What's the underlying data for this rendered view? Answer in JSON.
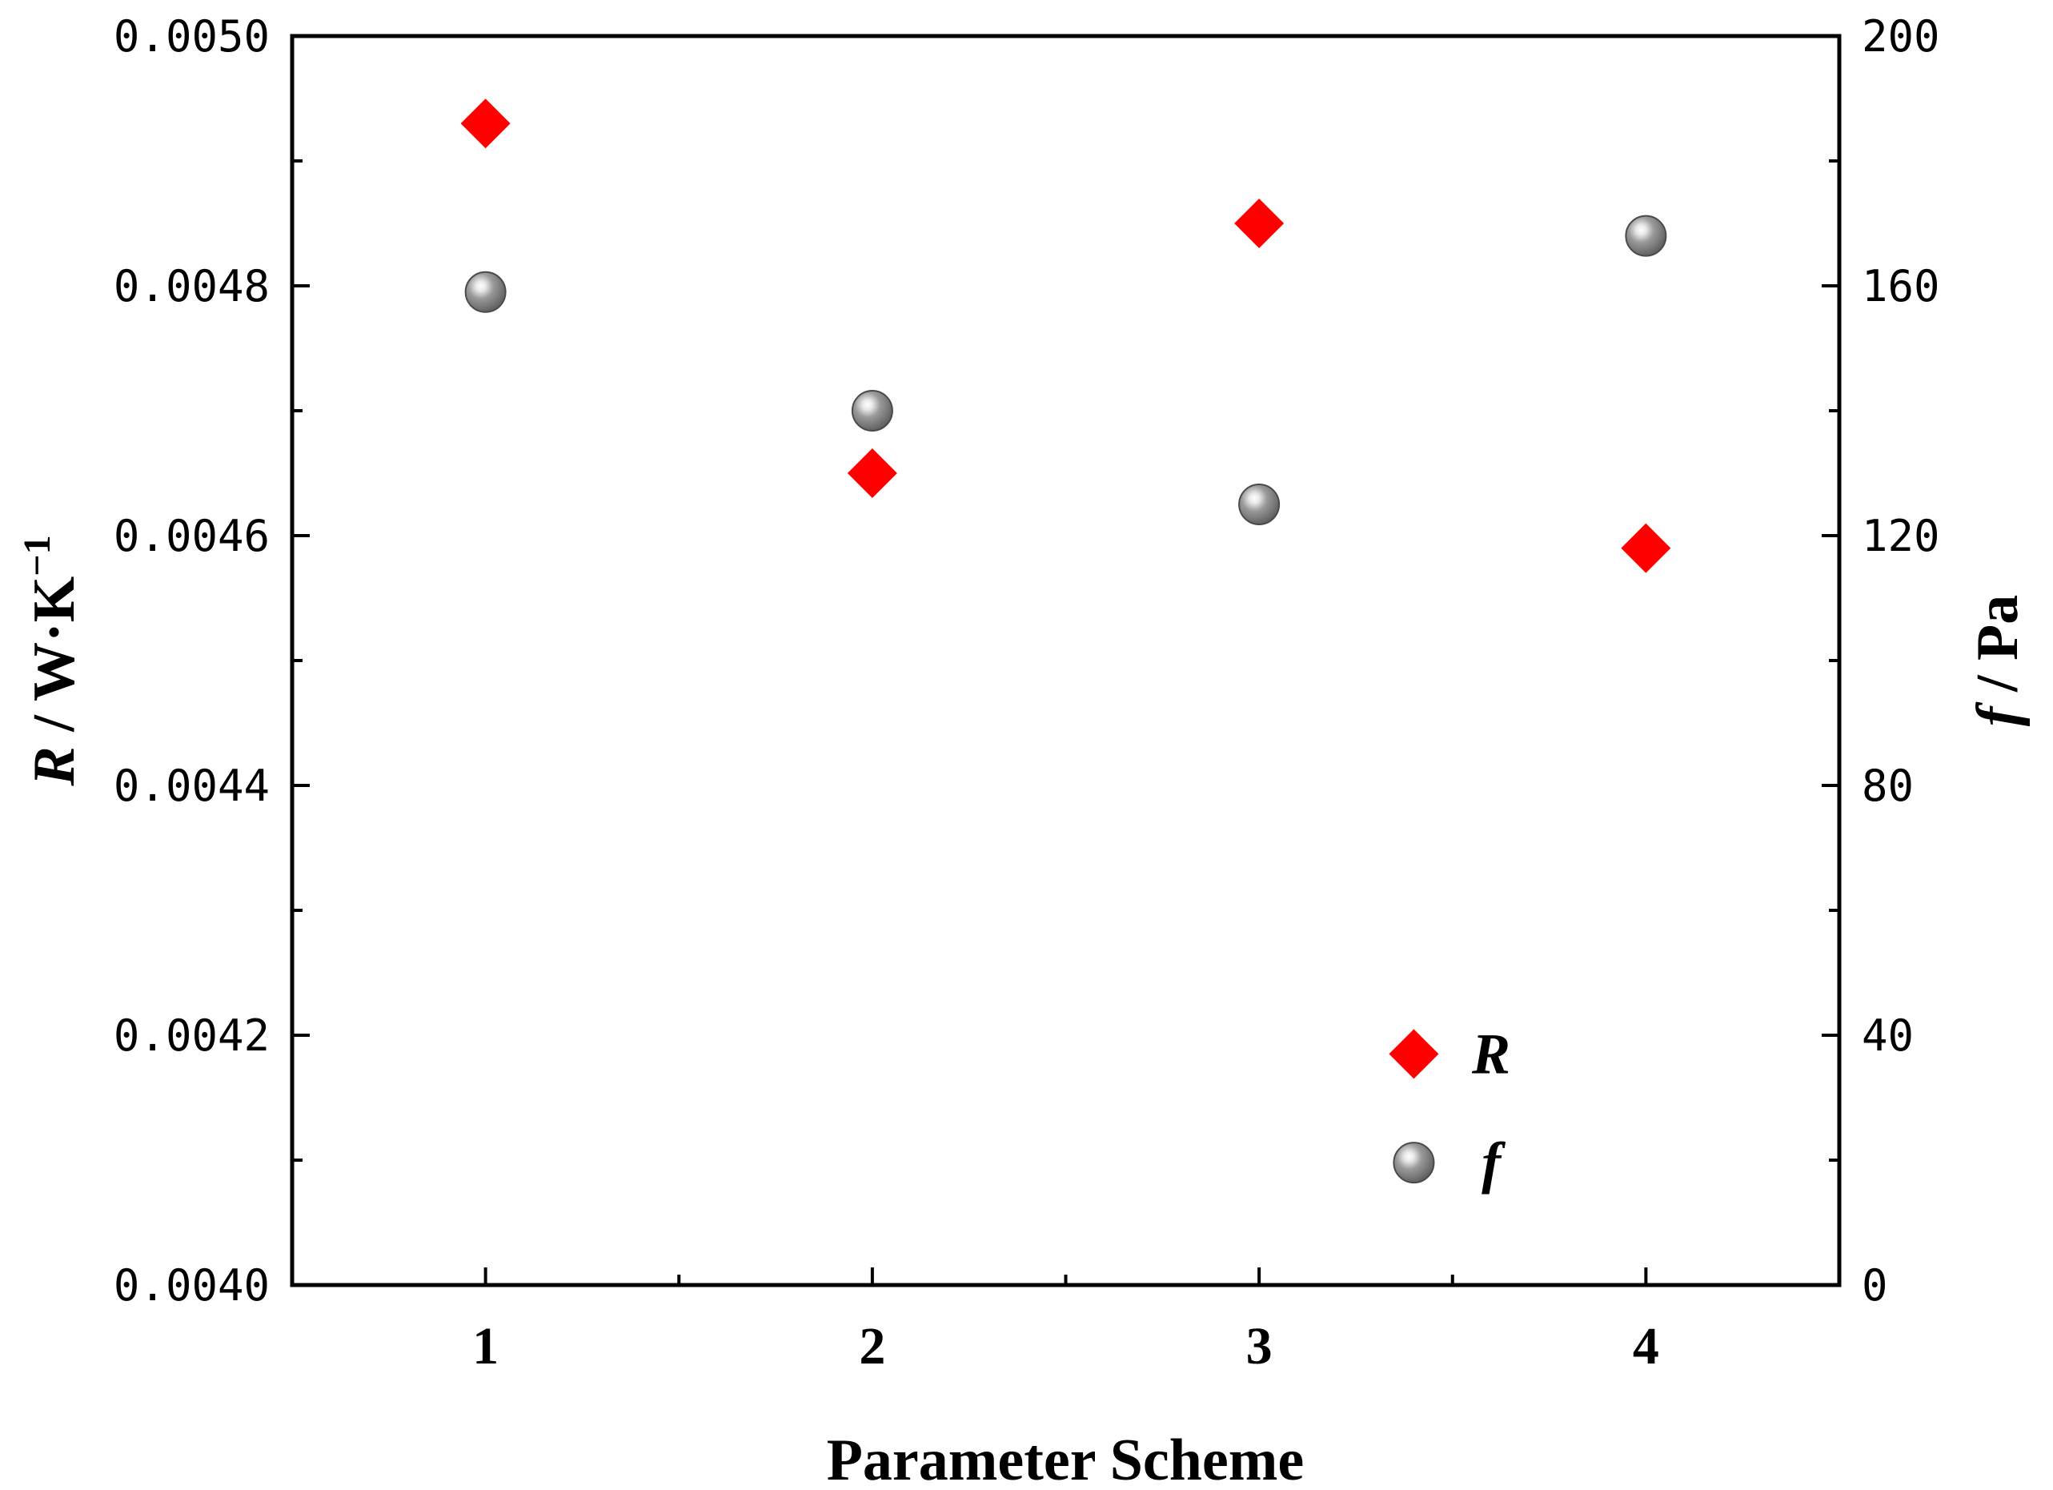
{
  "chart_data": {
    "type": "scatter",
    "xlabel": "Parameter Scheme",
    "x": [
      1,
      2,
      3,
      4
    ],
    "x_ticks": [
      "1",
      "2",
      "3",
      "4"
    ],
    "xlim": [
      0.5,
      4.5
    ],
    "ylabel_left": {
      "symbol": "R",
      "units": " / W·K",
      "exponent": "−1"
    },
    "ylim_left": [
      0.004,
      0.005
    ],
    "y_ticks_left": [
      "0.0040",
      "0.0042",
      "0.0044",
      "0.0046",
      "0.0048",
      "0.0050"
    ],
    "ylabel_right": {
      "symbol": "f",
      "units": " / Pa"
    },
    "ylim_right": [
      0,
      200
    ],
    "y_ticks_right": [
      "0",
      "40",
      "80",
      "120",
      "160",
      "200"
    ],
    "grid": false,
    "legend_position": "bottom-right",
    "series": [
      {
        "name": "R",
        "axis": "left",
        "marker": "diamond",
        "color": "#ff0000",
        "values": [
          0.00493,
          0.00465,
          0.00485,
          0.00459
        ]
      },
      {
        "name": "f",
        "axis": "right",
        "marker": "sphere",
        "color": "#808080",
        "values": [
          159,
          140,
          125,
          168
        ]
      }
    ]
  }
}
